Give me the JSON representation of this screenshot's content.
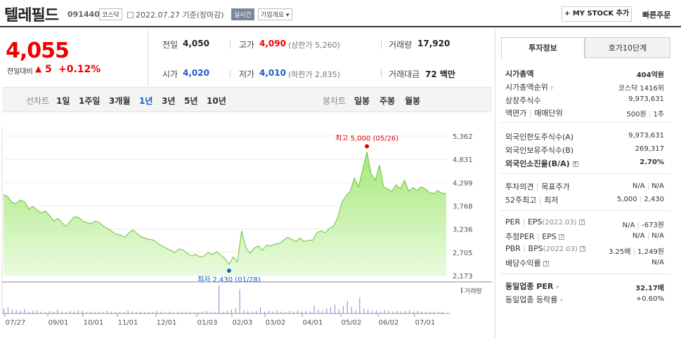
{
  "header": {
    "title": "텔레필드",
    "code": "091440",
    "market": "코스닥",
    "date": "2022.07.27 기준(장마감)",
    "realtime": "실시간",
    "overview": "기업개요",
    "mystock": "+ MY STOCK 추가",
    "quickorder": "빠른주문"
  },
  "price": {
    "current": "4,055",
    "change_label": "전일대비",
    "change_arrow": "▲",
    "change_value": "5",
    "change_pct": "+0.12%"
  },
  "stats": {
    "prev_label": "전일",
    "prev": "4,050",
    "high_label": "고가",
    "high": "4,090",
    "upper_limit": "(상한가 5,260)",
    "volume_label": "거래량",
    "volume": "17,920",
    "open_label": "시가",
    "open": "4,020",
    "low_label": "저가",
    "low": "4,010",
    "lower_limit": "(하한가 2,835)",
    "amount_label": "거래대금",
    "amount": "72 백만"
  },
  "range": {
    "line_label": "선차트",
    "items": [
      "1일",
      "1주일",
      "3개월",
      "1년",
      "3년",
      "5년",
      "10년"
    ],
    "active": "1년",
    "candle_label": "봉차트",
    "candles": [
      "일봉",
      "주봉",
      "월봉"
    ]
  },
  "chart_data": {
    "type": "area",
    "y_ticks": [
      "5,362",
      "4,831",
      "4,299",
      "3,768",
      "3,236",
      "2,705",
      "2,173"
    ],
    "ylim": [
      2173,
      5362
    ],
    "x_ticks": [
      "07/27",
      "09/01",
      "10/01",
      "11/01",
      "12/01",
      "01/03",
      "02/03",
      "03/02",
      "04/01",
      "05/02",
      "06/02",
      "07/01"
    ],
    "high_annotation": "최고 5,000 (05/26)",
    "low_annotation": "최저 2,430 (01/28)",
    "volume_label": "거래량",
    "series": [
      {
        "values": [
          4020,
          3980,
          3850,
          3820,
          3900,
          3860,
          3700,
          3750,
          3680,
          3600,
          3650,
          3550,
          3420,
          3480,
          3380,
          3300,
          3420,
          3520,
          3500,
          3420,
          3380,
          3360,
          3420,
          3380,
          3300,
          3250,
          3180,
          3120,
          3100,
          3050,
          3150,
          3220,
          3130,
          3060,
          3020,
          3000,
          2980,
          2900,
          2850,
          2800,
          2750,
          2700,
          2780,
          2760,
          2680,
          2620,
          2660,
          2600,
          2620,
          2700,
          2650,
          2720,
          2640,
          2560,
          2430,
          2600,
          2480,
          3200,
          2820,
          2680,
          2800,
          2850,
          2750,
          2870,
          2850,
          2900,
          2900,
          2980,
          3050,
          3000,
          2950,
          3030,
          2950,
          2980,
          2980,
          3150,
          3200,
          3150,
          3250,
          3300,
          3500,
          3850,
          4000,
          4100,
          4400,
          4200,
          4600,
          5000,
          4500,
          4350,
          4700,
          4200,
          4150,
          4100,
          4250,
          4150,
          4350,
          4100,
          4180,
          4120,
          4200,
          4150,
          4070,
          4050,
          4120,
          4050,
          4055
        ]
      }
    ]
  },
  "info": {
    "tab_invest": "투자정보",
    "tab_orderbook": "호가10단계",
    "mcap_label": "시가총액",
    "mcap": "404억원",
    "mcap_rank_label": "시가총액순위",
    "mcap_rank": "코스닥 1416위",
    "shares_label": "상장주식수",
    "shares": "9,973,631",
    "par_label": "액면가",
    "trade_unit_label": "매매단위",
    "par": "500원",
    "trade_unit": "1주",
    "foreign_limit_label": "외국인한도주식수(A)",
    "foreign_limit": "9,973,631",
    "foreign_hold_label": "외국인보유주식수(B)",
    "foreign_hold": "269,317",
    "foreign_ratio_label": "외국인소진율(B/A)",
    "foreign_ratio": "2.70%",
    "opinion_label": "투자의견",
    "target_label": "목표주가",
    "opinion": "N/A",
    "target": "N/A",
    "w52_high_label": "52주최고",
    "w52_low_label": "최저",
    "w52_high": "5,000",
    "w52_low": "2,430",
    "per_label": "PER",
    "eps_label": "EPS",
    "eps_period": "(2022.03)",
    "per": "N/A",
    "eps": "-673원",
    "est_per_label": "추정PER",
    "est_eps_label": "EPS",
    "est_per": "N/A",
    "est_eps": "N/A",
    "pbr_label": "PBR",
    "bps_label": "BPS",
    "bps_period": "(2022.03)",
    "pbr": "3.25배",
    "bps": "1,249원",
    "div_label": "배당수익률",
    "div": "N/A",
    "ind_per_label": "동일업종 PER",
    "ind_per": "32.17배",
    "ind_chg_label": "동일업종 등락률",
    "ind_chg": "+0.60%"
  },
  "colors": {
    "up": "#e00000",
    "down": "#1a5dc9",
    "area": "#b8ec8c",
    "line": "#6cc040"
  }
}
